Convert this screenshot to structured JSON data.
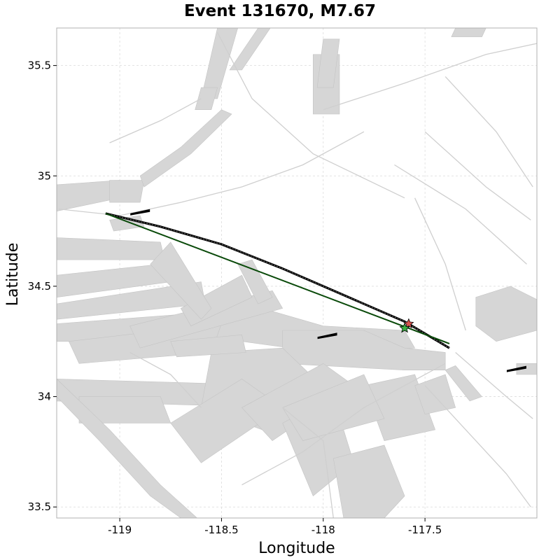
{
  "title": "Event 131670, M7.67",
  "x_axis_label": "Longitude",
  "y_axis_label": "Latitude",
  "x_ticks": [
    {
      "value": -119,
      "label": "-119"
    },
    {
      "value": -118.5,
      "label": "-118.5"
    },
    {
      "value": -118,
      "label": "-118"
    },
    {
      "value": -117.5,
      "label": "-117.5"
    }
  ],
  "y_ticks": [
    {
      "value": 33.5,
      "label": "33.5"
    },
    {
      "value": 34,
      "label": "34"
    },
    {
      "value": 34.5,
      "label": "34.5"
    },
    {
      "value": 35,
      "label": "35"
    },
    {
      "value": 35.5,
      "label": "35.5"
    }
  ],
  "chart_data": {
    "type": "map",
    "xlim": [
      -119.31,
      -116.95
    ],
    "ylim": [
      33.45,
      35.67
    ],
    "grid": true,
    "colors": {
      "background_faults": "#d3d3d3",
      "rupture_trace": "#000000",
      "hypocenter_line": "#0a4a0a",
      "epicenter_red": "#d9534f",
      "epicenter_green": "#3cb043"
    },
    "rupture_trace": [
      [
        -119.07,
        34.83
      ],
      [
        -118.8,
        34.77
      ],
      [
        -118.5,
        34.69
      ],
      [
        -118.2,
        34.58
      ],
      [
        -117.9,
        34.46
      ],
      [
        -117.6,
        34.34
      ],
      [
        -117.38,
        34.22
      ]
    ],
    "straight_line": [
      [
        -119.07,
        34.83
      ],
      [
        -117.38,
        34.24
      ]
    ],
    "epicenters": [
      {
        "symbol": "star",
        "color": "red",
        "lon": -117.58,
        "lat": 34.33
      },
      {
        "symbol": "star",
        "color": "green",
        "lon": -117.6,
        "lat": 34.31
      }
    ],
    "minor_segments": [
      {
        "lon": -118.9,
        "lat": 34.84
      },
      {
        "lon": -117.98,
        "lat": 34.28
      },
      {
        "lon": -117.05,
        "lat": 34.13
      }
    ],
    "fault_traces": [
      [
        [
          -118.52,
          35.65
        ],
        [
          -118.35,
          35.35
        ],
        [
          -118.05,
          35.1
        ],
        [
          -117.6,
          34.9
        ]
      ],
      [
        [
          -118.0,
          35.3
        ],
        [
          -117.6,
          35.42
        ],
        [
          -117.2,
          35.55
        ],
        [
          -116.95,
          35.6
        ]
      ],
      [
        [
          -117.65,
          35.05
        ],
        [
          -117.3,
          34.85
        ],
        [
          -117.0,
          34.6
        ]
      ],
      [
        [
          -117.5,
          35.2
        ],
        [
          -117.2,
          34.95
        ],
        [
          -116.98,
          34.8
        ]
      ],
      [
        [
          -117.4,
          35.45
        ],
        [
          -117.15,
          35.2
        ],
        [
          -116.97,
          34.95
        ]
      ],
      [
        [
          -117.55,
          34.9
        ],
        [
          -117.4,
          34.6
        ],
        [
          -117.3,
          34.3
        ]
      ],
      [
        [
          -117.5,
          34.05
        ],
        [
          -117.3,
          33.85
        ],
        [
          -117.1,
          33.65
        ],
        [
          -116.98,
          33.5
        ]
      ],
      [
        [
          -117.35,
          34.2
        ],
        [
          -117.1,
          34.0
        ],
        [
          -116.97,
          33.9
        ]
      ],
      [
        [
          -118.4,
          33.6
        ],
        [
          -118.1,
          33.75
        ],
        [
          -117.8,
          33.95
        ],
        [
          -117.4,
          34.15
        ]
      ],
      [
        [
          -118.2,
          33.95
        ],
        [
          -118.0,
          33.8
        ],
        [
          -117.95,
          33.45
        ]
      ],
      [
        [
          -119.3,
          34.85
        ],
        [
          -119.0,
          34.82
        ],
        [
          -118.7,
          34.88
        ],
        [
          -118.4,
          34.95
        ],
        [
          -118.1,
          35.05
        ],
        [
          -117.8,
          35.2
        ]
      ],
      [
        [
          -118.95,
          34.2
        ],
        [
          -118.75,
          34.1
        ],
        [
          -118.6,
          33.95
        ]
      ],
      [
        [
          -119.05,
          35.15
        ],
        [
          -118.8,
          35.25
        ],
        [
          -118.6,
          35.35
        ]
      ]
    ],
    "fault_patches": [
      [
        [
          -118.52,
          35.67
        ],
        [
          -118.42,
          35.67
        ],
        [
          -118.52,
          35.35
        ],
        [
          -118.6,
          35.35
        ]
      ],
      [
        [
          -118.6,
          35.4
        ],
        [
          -118.52,
          35.4
        ],
        [
          -118.55,
          35.3
        ],
        [
          -118.63,
          35.3
        ]
      ],
      [
        [
          -118.32,
          35.67
        ],
        [
          -118.26,
          35.67
        ],
        [
          -118.4,
          35.48
        ],
        [
          -118.46,
          35.48
        ]
      ],
      [
        [
          -118.05,
          35.55
        ],
        [
          -117.92,
          35.55
        ],
        [
          -117.92,
          35.28
        ],
        [
          -118.05,
          35.28
        ]
      ],
      [
        [
          -118.0,
          35.62
        ],
        [
          -117.92,
          35.62
        ],
        [
          -117.95,
          35.4
        ],
        [
          -118.03,
          35.4
        ]
      ],
      [
        [
          -117.35,
          35.67
        ],
        [
          -117.2,
          35.67
        ],
        [
          -117.22,
          35.63
        ],
        [
          -117.37,
          35.63
        ]
      ],
      [
        [
          -119.31,
          34.96
        ],
        [
          -119.0,
          34.98
        ],
        [
          -119.0,
          34.9
        ],
        [
          -119.31,
          34.84
        ]
      ],
      [
        [
          -119.05,
          34.98
        ],
        [
          -118.88,
          34.98
        ],
        [
          -118.9,
          34.88
        ],
        [
          -119.05,
          34.88
        ]
      ],
      [
        [
          -119.31,
          34.72
        ],
        [
          -118.8,
          34.7
        ],
        [
          -118.78,
          34.62
        ],
        [
          -119.31,
          34.62
        ]
      ],
      [
        [
          -119.31,
          34.55
        ],
        [
          -118.8,
          34.6
        ],
        [
          -118.75,
          34.52
        ],
        [
          -119.31,
          34.45
        ]
      ],
      [
        [
          -119.31,
          34.42
        ],
        [
          -118.6,
          34.52
        ],
        [
          -118.58,
          34.42
        ],
        [
          -119.31,
          34.35
        ]
      ],
      [
        [
          -119.31,
          34.33
        ],
        [
          -118.3,
          34.4
        ],
        [
          -118.0,
          34.32
        ],
        [
          -117.6,
          34.3
        ],
        [
          -117.55,
          34.22
        ],
        [
          -118.0,
          34.2
        ],
        [
          -118.4,
          34.25
        ],
        [
          -119.31,
          34.25
        ]
      ],
      [
        [
          -119.25,
          34.25
        ],
        [
          -118.5,
          34.33
        ],
        [
          -118.55,
          34.2
        ],
        [
          -119.2,
          34.15
        ]
      ],
      [
        [
          -118.95,
          34.32
        ],
        [
          -118.25,
          34.48
        ],
        [
          -118.2,
          34.4
        ],
        [
          -118.9,
          34.22
        ]
      ],
      [
        [
          -118.7,
          34.4
        ],
        [
          -118.4,
          34.55
        ],
        [
          -118.35,
          34.45
        ],
        [
          -118.65,
          34.32
        ]
      ],
      [
        [
          -118.2,
          34.3
        ],
        [
          -117.8,
          34.3
        ],
        [
          -117.6,
          34.22
        ],
        [
          -117.4,
          34.2
        ],
        [
          -117.4,
          34.12
        ],
        [
          -117.6,
          34.12
        ],
        [
          -118.2,
          34.15
        ]
      ],
      [
        [
          -119.31,
          34.08
        ],
        [
          -118.2,
          34.05
        ],
        [
          -118.2,
          33.95
        ],
        [
          -119.31,
          33.98
        ]
      ],
      [
        [
          -119.2,
          34.0
        ],
        [
          -118.8,
          34.0
        ],
        [
          -118.75,
          33.88
        ],
        [
          -119.2,
          33.88
        ]
      ],
      [
        [
          -118.55,
          34.2
        ],
        [
          -118.2,
          34.22
        ],
        [
          -117.95,
          34.0
        ],
        [
          -118.3,
          33.85
        ],
        [
          -118.6,
          33.95
        ]
      ],
      [
        [
          -118.75,
          33.88
        ],
        [
          -118.4,
          34.08
        ],
        [
          -118.2,
          33.95
        ],
        [
          -118.6,
          33.7
        ]
      ],
      [
        [
          -118.4,
          33.95
        ],
        [
          -118.0,
          34.15
        ],
        [
          -117.85,
          34.05
        ],
        [
          -118.25,
          33.8
        ]
      ],
      [
        [
          -118.2,
          33.88
        ],
        [
          -117.95,
          34.0
        ],
        [
          -117.85,
          33.7
        ],
        [
          -118.05,
          33.55
        ]
      ],
      [
        [
          -117.95,
          33.72
        ],
        [
          -117.7,
          33.78
        ],
        [
          -117.6,
          33.55
        ],
        [
          -117.7,
          33.45
        ],
        [
          -117.9,
          33.45
        ]
      ],
      [
        [
          -117.8,
          34.05
        ],
        [
          -117.55,
          34.1
        ],
        [
          -117.45,
          33.85
        ],
        [
          -117.7,
          33.8
        ]
      ],
      [
        [
          -117.55,
          34.05
        ],
        [
          -117.4,
          34.1
        ],
        [
          -117.35,
          33.95
        ],
        [
          -117.5,
          33.92
        ]
      ],
      [
        [
          -118.2,
          33.95
        ],
        [
          -117.8,
          34.1
        ],
        [
          -117.7,
          33.9
        ],
        [
          -118.1,
          33.8
        ]
      ],
      [
        [
          -117.25,
          34.45
        ],
        [
          -117.08,
          34.5
        ],
        [
          -116.95,
          34.44
        ],
        [
          -116.95,
          34.3
        ],
        [
          -117.15,
          34.25
        ],
        [
          -117.25,
          34.32
        ]
      ],
      [
        [
          -117.05,
          34.15
        ],
        [
          -116.95,
          34.15
        ],
        [
          -116.95,
          34.1
        ],
        [
          -117.05,
          34.1
        ]
      ],
      [
        [
          -117.4,
          34.12
        ],
        [
          -117.35,
          34.14
        ],
        [
          -117.22,
          34.0
        ],
        [
          -117.28,
          33.98
        ]
      ],
      [
        [
          -119.31,
          34.0
        ],
        [
          -119.1,
          33.8
        ],
        [
          -118.85,
          33.55
        ],
        [
          -118.7,
          33.45
        ],
        [
          -118.62,
          33.45
        ],
        [
          -118.8,
          33.6
        ],
        [
          -119.05,
          33.85
        ],
        [
          -119.31,
          34.08
        ]
      ],
      [
        [
          -118.9,
          35.0
        ],
        [
          -118.7,
          35.13
        ],
        [
          -118.5,
          35.3
        ],
        [
          -118.45,
          35.28
        ],
        [
          -118.65,
          35.1
        ],
        [
          -118.88,
          34.95
        ]
      ],
      [
        [
          -119.05,
          34.8
        ],
        [
          -118.9,
          34.82
        ],
        [
          -118.88,
          34.77
        ],
        [
          -119.03,
          34.75
        ]
      ],
      [
        [
          -118.75,
          34.25
        ],
        [
          -118.4,
          34.28
        ],
        [
          -118.38,
          34.2
        ],
        [
          -118.72,
          34.18
        ]
      ],
      [
        [
          -118.85,
          34.6
        ],
        [
          -118.75,
          34.7
        ],
        [
          -118.55,
          34.4
        ],
        [
          -118.6,
          34.35
        ]
      ],
      [
        [
          -118.42,
          34.6
        ],
        [
          -118.35,
          34.62
        ],
        [
          -118.25,
          34.45
        ],
        [
          -118.32,
          34.42
        ]
      ]
    ]
  }
}
